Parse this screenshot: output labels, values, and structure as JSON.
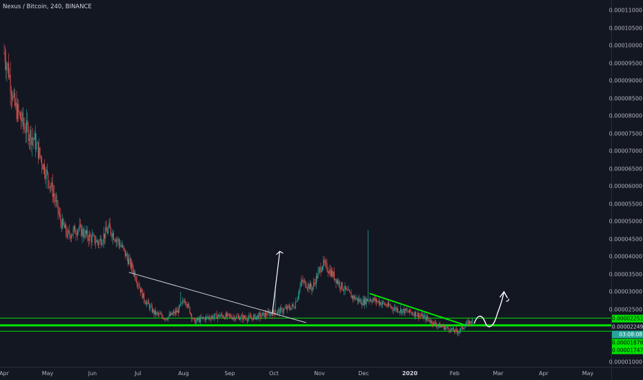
{
  "symbol": {
    "title": "Nexus / Bitcoin, 240, BINANCE"
  },
  "colors": {
    "background": "#131722",
    "up": "#26a69a",
    "down": "#ef5350",
    "support": "#00e600",
    "trend": "#d1d4dc",
    "arrow": "#ffffff",
    "axis_text": "#b2b5be"
  },
  "price_axis": {
    "ticks": [
      "0.00011000",
      "0.00010500",
      "0.00010000",
      "0.00009500",
      "0.00009000",
      "0.00008500",
      "0.00008000",
      "0.00007500",
      "0.00007000",
      "0.00006500",
      "0.00006000",
      "0.00005500",
      "0.00005000",
      "0.00004500",
      "0.00004000",
      "0.00003500",
      "0.00003000",
      "0.00002500",
      "0.00001000"
    ],
    "labels": [
      {
        "text": "0.00002251",
        "value": 2.251e-05,
        "bg": "#00e600",
        "fg": "#000000"
      },
      {
        "text": "0.00002249",
        "value": 2.249e-05,
        "bg": "#131722",
        "fg": "#d1d4dc"
      },
      {
        "text": "03:08:08",
        "value": 2.045e-05,
        "bg": "#26a69a",
        "fg": "#ffffff"
      },
      {
        "text": "0.00001878",
        "value": 1.878e-05,
        "bg": "#00e600",
        "fg": "#000000"
      },
      {
        "text": "0.00001747",
        "value": 1.747e-05,
        "bg": "#00e600",
        "fg": "#000000"
      }
    ]
  },
  "time_axis": {
    "labels": [
      {
        "text": "Apr",
        "bold": false
      },
      {
        "text": "May",
        "bold": false
      },
      {
        "text": "Jun",
        "bold": false
      },
      {
        "text": "Jul",
        "bold": false
      },
      {
        "text": "Aug",
        "bold": false
      },
      {
        "text": "Sep",
        "bold": false
      },
      {
        "text": "Oct",
        "bold": false
      },
      {
        "text": "Nov",
        "bold": false
      },
      {
        "text": "Dec",
        "bold": false
      },
      {
        "text": "2020",
        "bold": true
      },
      {
        "text": "Feb",
        "bold": false
      },
      {
        "text": "Mar",
        "bold": false
      },
      {
        "text": "Apr",
        "bold": false
      },
      {
        "text": "May",
        "bold": false
      }
    ]
  },
  "chart_data": {
    "type": "candlestick",
    "title": "Nexus / Bitcoin, 240, BINANCE",
    "xlabel": "",
    "ylabel": "",
    "ylim": [
      9.5e-06,
      0.000111
    ],
    "x_range": [
      "2019-04-01",
      "2020-05-10"
    ],
    "price_path": [
      {
        "x": "2019-04-01",
        "y": 9.8e-05
      },
      {
        "x": "2019-04-04",
        "y": 9.3e-05
      },
      {
        "x": "2019-04-08",
        "y": 8.3e-05
      },
      {
        "x": "2019-04-15",
        "y": 7.7e-05
      },
      {
        "x": "2019-04-22",
        "y": 7.3e-05
      },
      {
        "x": "2019-04-28",
        "y": 6.6e-05
      },
      {
        "x": "2019-05-05",
        "y": 5.8e-05
      },
      {
        "x": "2019-05-10",
        "y": 5e-05
      },
      {
        "x": "2019-05-15",
        "y": 4.6e-05
      },
      {
        "x": "2019-05-22",
        "y": 4.8e-05
      },
      {
        "x": "2019-05-28",
        "y": 4.6e-05
      },
      {
        "x": "2019-06-05",
        "y": 4.4e-05
      },
      {
        "x": "2019-06-12",
        "y": 4.8e-05
      },
      {
        "x": "2019-06-20",
        "y": 4.3e-05
      },
      {
        "x": "2019-06-28",
        "y": 3.6e-05
      },
      {
        "x": "2019-07-05",
        "y": 2.8e-05
      },
      {
        "x": "2019-07-12",
        "y": 2.4e-05
      },
      {
        "x": "2019-07-20",
        "y": 2.25e-05
      },
      {
        "x": "2019-07-28",
        "y": 2.45e-05
      },
      {
        "x": "2019-08-02",
        "y": 2.8e-05
      },
      {
        "x": "2019-08-08",
        "y": 2.15e-05
      },
      {
        "x": "2019-08-15",
        "y": 2.25e-05
      },
      {
        "x": "2019-08-25",
        "y": 2.32e-05
      },
      {
        "x": "2019-09-05",
        "y": 2.28e-05
      },
      {
        "x": "2019-09-15",
        "y": 2.25e-05
      },
      {
        "x": "2019-09-25",
        "y": 2.35e-05
      },
      {
        "x": "2019-10-05",
        "y": 2.45e-05
      },
      {
        "x": "2019-10-15",
        "y": 2.6e-05
      },
      {
        "x": "2019-10-20",
        "y": 3.3e-05
      },
      {
        "x": "2019-10-27",
        "y": 3.1e-05
      },
      {
        "x": "2019-11-03",
        "y": 3.8e-05
      },
      {
        "x": "2019-11-08",
        "y": 3.6e-05
      },
      {
        "x": "2019-11-15",
        "y": 3.2e-05
      },
      {
        "x": "2019-11-22",
        "y": 2.9e-05
      },
      {
        "x": "2019-11-30",
        "y": 2.7e-05
      },
      {
        "x": "2019-12-05",
        "y": 2.8e-05
      },
      {
        "x": "2019-12-12",
        "y": 2.7e-05
      },
      {
        "x": "2019-12-20",
        "y": 2.55e-05
      },
      {
        "x": "2019-12-28",
        "y": 2.45e-05
      },
      {
        "x": "2020-01-05",
        "y": 2.38e-05
      },
      {
        "x": "2020-01-12",
        "y": 2.25e-05
      },
      {
        "x": "2020-01-20",
        "y": 2.05e-05
      },
      {
        "x": "2020-01-28",
        "y": 1.95e-05
      },
      {
        "x": "2020-02-03",
        "y": 1.85e-05
      },
      {
        "x": "2020-02-08",
        "y": 2.05e-05
      },
      {
        "x": "2020-02-13",
        "y": 2.18e-05
      }
    ],
    "spikes": [
      {
        "x": "2019-12-04",
        "y": 4.75e-05
      },
      {
        "x": "2019-10-02",
        "y": 3.15e-05
      },
      {
        "x": "2019-07-30",
        "y": 3e-05
      }
    ],
    "horizontal_lines": [
      {
        "value": 2.251e-05,
        "width": 1
      },
      {
        "value": 2.045e-05,
        "width": 3
      },
      {
        "value": 1.878e-05,
        "width": 1
      }
    ],
    "trendlines": [
      {
        "from": {
          "x": "2019-06-25",
          "y": 3.55e-05
        },
        "to": {
          "x": "2019-10-23",
          "y": 2.12e-05
        },
        "color": "#d1d4dc"
      },
      {
        "from": {
          "x": "2019-12-05",
          "y": 2.95e-05
        },
        "to": {
          "x": "2020-02-08",
          "y": 2.05e-05
        },
        "color": "#00e600"
      }
    ],
    "arrows": [
      {
        "from": {
          "x": "2019-09-30",
          "y": 2.4e-05
        },
        "to": {
          "x": "2019-10-05",
          "y": 4.15e-05
        }
      },
      {
        "from": {
          "x": "2020-02-14",
          "y": 2.25e-05
        },
        "to": {
          "x": "2020-03-05",
          "y": 3e-05
        }
      }
    ]
  }
}
